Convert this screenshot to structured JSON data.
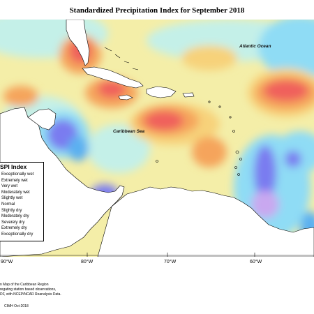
{
  "title": "Standardized Precipitation Index for September 2018",
  "map_labels": {
    "atlantic": "Atlantic Ocean",
    "caribbean": "Caribbean Sea"
  },
  "axis": {
    "lon_labels": [
      "90°W",
      "80°W",
      "70°W",
      "60°W"
    ]
  },
  "legend": {
    "title": "SPI Index",
    "items": [
      {
        "label": "Exceptionally wet",
        "color": "#4b4cdc"
      },
      {
        "label": "Extremely wet",
        "color": "#7a7cf0"
      },
      {
        "label": "Very wet",
        "color": "#5bb0f0"
      },
      {
        "label": "Moderately wet",
        "color": "#8fdcf5"
      },
      {
        "label": "Slightly wet",
        "color": "#c4f0e8"
      },
      {
        "label": "Normal",
        "color": "#ffffff"
      },
      {
        "label": "Slightly dry",
        "color": "#f3f0a2"
      },
      {
        "label": "Moderately dry",
        "color": "#f7d27a"
      },
      {
        "label": "Severely dry",
        "color": "#f5a45c"
      },
      {
        "label": "Extremely dry",
        "color": "#f0605c"
      },
      {
        "label": "Exceptionally dry",
        "color": "#e8405a"
      }
    ]
  },
  "footer": {
    "lines": [
      "n Map of the Caribbean Region",
      "regating station based observations,",
      "DF, with NCEP/NCAR Reanalysis Data."
    ],
    "credit": "CIMH Oct-2018"
  }
}
